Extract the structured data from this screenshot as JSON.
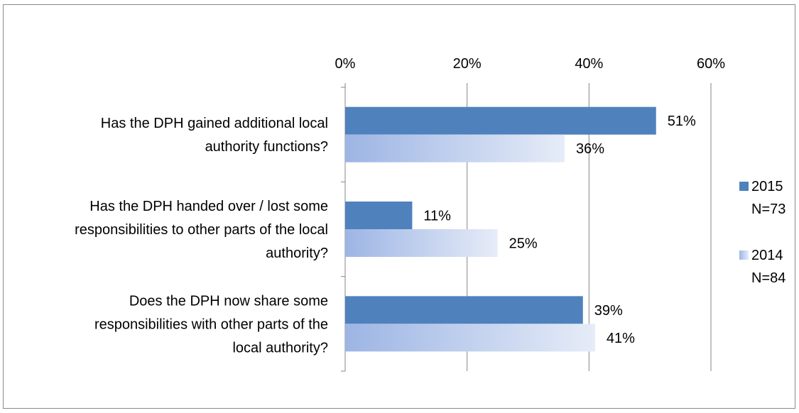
{
  "chart_data": {
    "type": "bar",
    "orientation": "horizontal",
    "categories": [
      "Has the DPH gained additional local authority functions?",
      "Has the DPH handed over / lost some responsibilities to other parts of the local authority?",
      "Does the DPH now share some responsibilities with other parts of the local authority?"
    ],
    "category_lines": [
      [
        "Has the DPH gained additional local",
        "authority functions?"
      ],
      [
        "Has the DPH handed over / lost some",
        "responsibilities to other parts of the local",
        "authority?"
      ],
      [
        "Does the DPH now share some",
        "responsibilities with other parts of the",
        "local authority?"
      ]
    ],
    "series": [
      {
        "name": "2015",
        "sub": "N=73",
        "values": [
          51,
          11,
          39
        ],
        "color": "#4f81bd"
      },
      {
        "name": "2014",
        "sub": "N=84",
        "values": [
          36,
          25,
          41
        ],
        "color": "#a6bde6"
      }
    ],
    "data_labels": [
      [
        "51%",
        "11%",
        "39%"
      ],
      [
        "36%",
        "25%",
        "41%"
      ]
    ],
    "xlim": [
      0,
      60
    ],
    "xticks": [
      0,
      20,
      40,
      60
    ],
    "xtick_labels": [
      "0%",
      "20%",
      "40%",
      "60%"
    ],
    "x_axis_position": "top",
    "grid": true,
    "legend_position": "right"
  }
}
